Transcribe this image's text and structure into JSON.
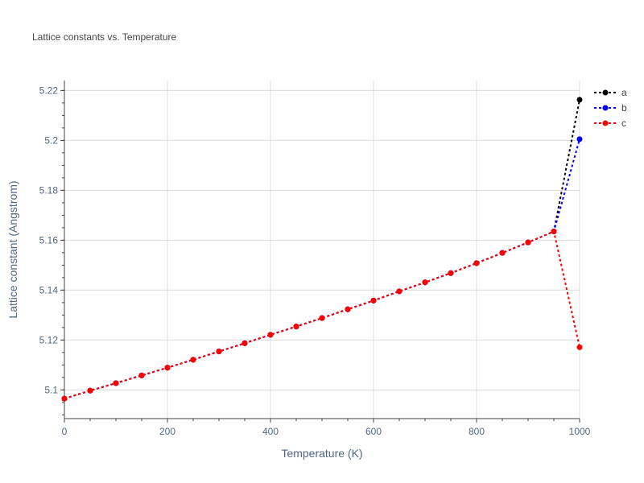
{
  "chart_data": {
    "type": "line",
    "title": "Lattice constants vs. Temperature",
    "xlabel": "Temperature (K)",
    "ylabel": "Lattice constant (Angstrom)",
    "xlim": [
      0,
      1000
    ],
    "ylim": [
      5.0885,
      5.224
    ],
    "x_ticks": [
      0,
      200,
      400,
      600,
      800,
      1000
    ],
    "y_ticks": [
      5.1,
      5.12,
      5.14,
      5.16,
      5.18,
      5.2,
      5.22
    ],
    "y_tick_labels": [
      "5.1",
      "5.12",
      "5.14",
      "5.16",
      "5.18",
      "5.2",
      "5.22"
    ],
    "grid": true,
    "legend_position": "top-right",
    "x": [
      0,
      50,
      100,
      150,
      200,
      250,
      300,
      350,
      400,
      450,
      500,
      550,
      600,
      650,
      700,
      750,
      800,
      850,
      900,
      950,
      1000
    ],
    "series": [
      {
        "name": "a",
        "color": "#000000",
        "values": [
          5.0965,
          5.0997,
          5.1027,
          5.1058,
          5.1089,
          5.1121,
          5.1154,
          5.1187,
          5.1221,
          5.1254,
          5.1288,
          5.1323,
          5.1358,
          5.1395,
          5.1431,
          5.1468,
          5.1508,
          5.1549,
          5.1591,
          5.1635,
          5.2163
        ]
      },
      {
        "name": "b",
        "color": "#0000ff",
        "values": [
          5.0965,
          5.0997,
          5.1027,
          5.1058,
          5.1089,
          5.1121,
          5.1154,
          5.1187,
          5.1221,
          5.1254,
          5.1288,
          5.1323,
          5.1358,
          5.1395,
          5.1431,
          5.1468,
          5.1508,
          5.1549,
          5.1591,
          5.1635,
          5.2005
        ]
      },
      {
        "name": "c",
        "color": "#ff0000",
        "values": [
          5.0965,
          5.0997,
          5.1027,
          5.1058,
          5.1089,
          5.1121,
          5.1154,
          5.1187,
          5.1221,
          5.1254,
          5.1288,
          5.1323,
          5.1358,
          5.1395,
          5.1431,
          5.1468,
          5.1508,
          5.1549,
          5.1591,
          5.1635,
          5.1171
        ]
      }
    ]
  }
}
